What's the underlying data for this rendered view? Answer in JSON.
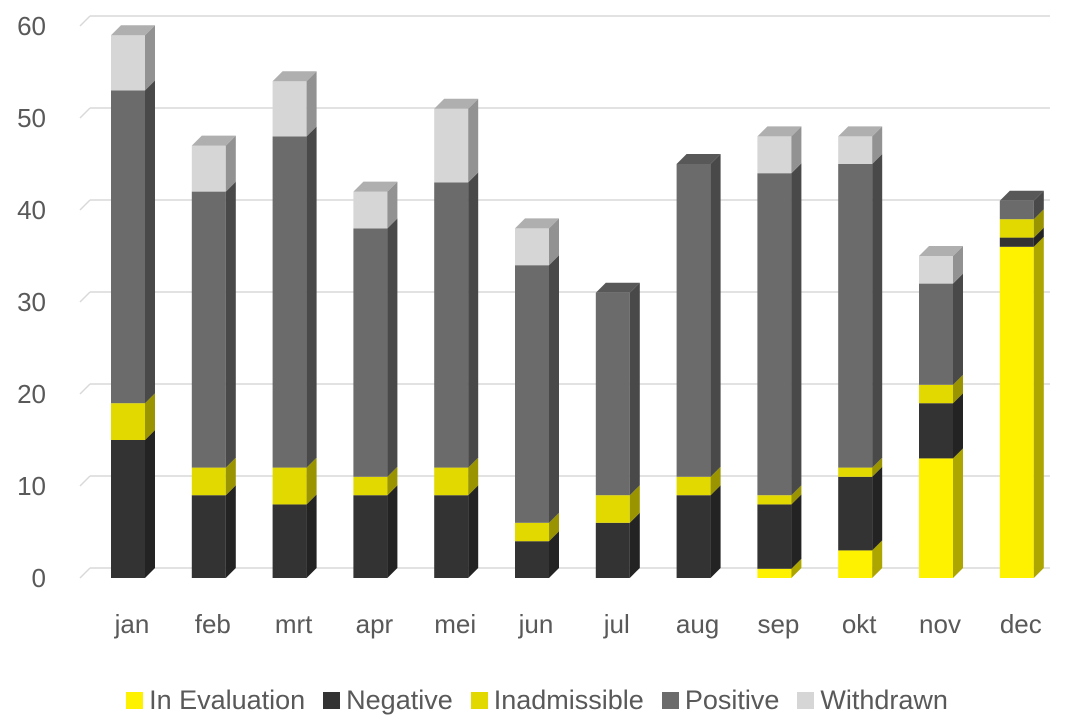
{
  "chart_data": {
    "type": "bar",
    "stacked": true,
    "style": "3d",
    "categories": [
      "jan",
      "feb",
      "mrt",
      "apr",
      "mei",
      "jun",
      "jul",
      "aug",
      "sep",
      "okt",
      "nov",
      "dec"
    ],
    "series": [
      {
        "name": "In Evaluation",
        "color": "#FFF200",
        "values": [
          0,
          0,
          0,
          0,
          0,
          0,
          0,
          0,
          1,
          3,
          13,
          36
        ]
      },
      {
        "name": "Negative",
        "color": "#333333",
        "values": [
          15,
          9,
          8,
          9,
          9,
          4,
          6,
          9,
          7,
          8,
          6,
          1
        ]
      },
      {
        "name": "Inadmissible",
        "color": "#E2D900",
        "values": [
          4,
          3,
          4,
          2,
          3,
          2,
          3,
          2,
          1,
          1,
          2,
          2
        ]
      },
      {
        "name": "Positive",
        "color": "#6B6B6B",
        "values": [
          34,
          30,
          36,
          27,
          31,
          28,
          22,
          34,
          35,
          33,
          11,
          2
        ]
      },
      {
        "name": "Withdrawn",
        "color": "#D6D6D6",
        "values": [
          6,
          5,
          6,
          4,
          8,
          4,
          0,
          0,
          4,
          3,
          3,
          0
        ]
      }
    ],
    "yticks": [
      "0",
      "10",
      "20",
      "30",
      "40",
      "50",
      "60"
    ],
    "ylim": [
      0,
      60
    ],
    "grid": true,
    "legend_position": "bottom",
    "title": "",
    "xlabel": "",
    "ylabel": ""
  }
}
